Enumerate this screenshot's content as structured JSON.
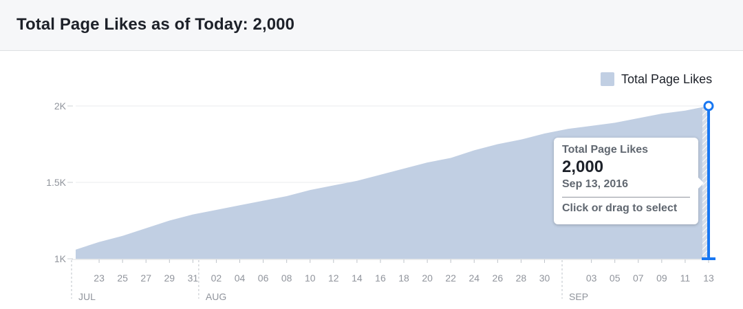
{
  "header": {
    "title": "Total Page Likes as of Today: 2,000"
  },
  "legend": {
    "label": "Total Page Likes",
    "color": "#c1cfe3"
  },
  "tooltip": {
    "title": "Total Page Likes",
    "value": "2,000",
    "date": "Sep 13, 2016",
    "hint": "Click or drag to select"
  },
  "colors": {
    "area": "#c1cfe3",
    "marker": "#1877f2",
    "grid": "#e9ebee",
    "axis_text": "#90949c"
  },
  "chart_data": {
    "type": "area",
    "title": "",
    "xlabel": "",
    "ylabel": "",
    "ylim": [
      1000,
      2000
    ],
    "yticks": [
      {
        "value": 1000,
        "label": "1K"
      },
      {
        "value": 1500,
        "label": "1.5K"
      },
      {
        "value": 2000,
        "label": "2K"
      }
    ],
    "grid": true,
    "legend_position": "top-right",
    "x_start": "2016-07-21",
    "x_end": "2016-09-13",
    "xticks": [
      {
        "date": "2016-07-23",
        "label": "23"
      },
      {
        "date": "2016-07-25",
        "label": "25"
      },
      {
        "date": "2016-07-27",
        "label": "27"
      },
      {
        "date": "2016-07-29",
        "label": "29"
      },
      {
        "date": "2016-07-31",
        "label": "31"
      },
      {
        "date": "2016-08-02",
        "label": "02"
      },
      {
        "date": "2016-08-04",
        "label": "04"
      },
      {
        "date": "2016-08-06",
        "label": "06"
      },
      {
        "date": "2016-08-08",
        "label": "08"
      },
      {
        "date": "2016-08-10",
        "label": "10"
      },
      {
        "date": "2016-08-12",
        "label": "12"
      },
      {
        "date": "2016-08-14",
        "label": "14"
      },
      {
        "date": "2016-08-16",
        "label": "16"
      },
      {
        "date": "2016-08-18",
        "label": "18"
      },
      {
        "date": "2016-08-20",
        "label": "20"
      },
      {
        "date": "2016-08-22",
        "label": "22"
      },
      {
        "date": "2016-08-24",
        "label": "24"
      },
      {
        "date": "2016-08-26",
        "label": "26"
      },
      {
        "date": "2016-08-28",
        "label": "28"
      },
      {
        "date": "2016-08-30",
        "label": "30"
      },
      {
        "date": "2016-09-03",
        "label": "03"
      },
      {
        "date": "2016-09-05",
        "label": "05"
      },
      {
        "date": "2016-09-07",
        "label": "07"
      },
      {
        "date": "2016-09-09",
        "label": "09"
      },
      {
        "date": "2016-09-11",
        "label": "11"
      },
      {
        "date": "2016-09-13",
        "label": "13"
      }
    ],
    "months": [
      {
        "date": "2016-07-21",
        "label": "JUL"
      },
      {
        "date": "2016-08-01",
        "label": "AUG"
      },
      {
        "date": "2016-09-01",
        "label": "SEP"
      }
    ],
    "series": [
      {
        "name": "Total Page Likes",
        "points": [
          [
            "2016-07-21",
            1060
          ],
          [
            "2016-07-23",
            1110
          ],
          [
            "2016-07-25",
            1150
          ],
          [
            "2016-07-27",
            1200
          ],
          [
            "2016-07-29",
            1250
          ],
          [
            "2016-07-31",
            1290
          ],
          [
            "2016-08-02",
            1320
          ],
          [
            "2016-08-04",
            1350
          ],
          [
            "2016-08-06",
            1380
          ],
          [
            "2016-08-08",
            1410
          ],
          [
            "2016-08-10",
            1450
          ],
          [
            "2016-08-12",
            1480
          ],
          [
            "2016-08-14",
            1510
          ],
          [
            "2016-08-16",
            1550
          ],
          [
            "2016-08-18",
            1590
          ],
          [
            "2016-08-20",
            1630
          ],
          [
            "2016-08-22",
            1660
          ],
          [
            "2016-08-24",
            1710
          ],
          [
            "2016-08-26",
            1750
          ],
          [
            "2016-08-28",
            1780
          ],
          [
            "2016-08-30",
            1820
          ],
          [
            "2016-09-01",
            1850
          ],
          [
            "2016-09-03",
            1870
          ],
          [
            "2016-09-05",
            1890
          ],
          [
            "2016-09-07",
            1920
          ],
          [
            "2016-09-09",
            1950
          ],
          [
            "2016-09-11",
            1970
          ],
          [
            "2016-09-13",
            2000
          ]
        ]
      }
    ],
    "highlight": {
      "date": "2016-09-13",
      "value": 2000
    }
  }
}
